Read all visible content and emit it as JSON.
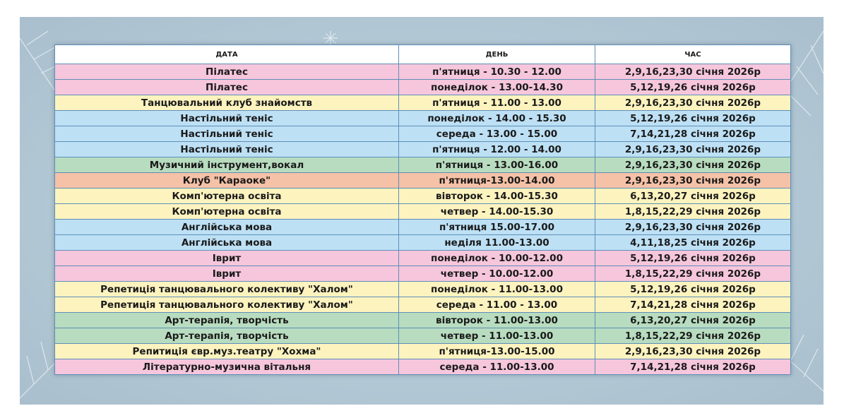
{
  "colors": {
    "pink": "#f6c6dc",
    "yellow": "#fdf3bf",
    "blue": "#bde0f5",
    "green": "#b8dcbf",
    "orange": "#f5c1a7"
  },
  "headers": [
    "ДАТА",
    "ДЕНЬ",
    "ЧАС"
  ],
  "rows": [
    {
      "activity": "Пілатес",
      "day": "п'ятниця - 10.30 - 12.00",
      "dates": "2,9,16,23,30 січня 2026р",
      "color": "pink"
    },
    {
      "activity": "Пілатес",
      "day": "понеділок - 13.00-14.30",
      "dates": "5,12,19,26 січня 2026р",
      "color": "pink"
    },
    {
      "activity": "Танцювальний клуб знайомств",
      "day": "п'ятниця - 11.00 - 13.00",
      "dates": "2,9,16,23,30 січня 2026р",
      "color": "yellow"
    },
    {
      "activity": "Настільний теніс",
      "day": "понеділок - 14.00 - 15.30",
      "dates": "5,12,19,26 січня 2026р",
      "color": "blue"
    },
    {
      "activity": "Настільний теніс",
      "day": "середа - 13.00 - 15.00",
      "dates": "7,14,21,28  січня 2026р",
      "color": "blue"
    },
    {
      "activity": "Настільний теніс",
      "day": "п'ятниця - 12.00 - 14.00",
      "dates": "2,9,16,23,30 січня 2026р",
      "color": "blue"
    },
    {
      "activity": "Музичний інструмент,вокал",
      "day": "п'ятниця - 13.00-16.00",
      "dates": "2,9,16,23,30 січня 2026р",
      "color": "green"
    },
    {
      "activity": "Клуб \"Караоке\"",
      "day": "п'ятниця-13.00-14.00",
      "dates": "2,9,16,23,30 січня 2026р",
      "color": "orange"
    },
    {
      "activity": "Комп'ютерна освіта",
      "day": "вівторок - 14.00-15.30",
      "dates": "6,13,20,27 січня 2026р",
      "color": "yellow"
    },
    {
      "activity": "Комп'ютерна освіта",
      "day": "четвер - 14.00-15.30",
      "dates": "1,8,15,22,29 січня 2026р",
      "color": "yellow"
    },
    {
      "activity": "Англійська мова",
      "day": "п'ятниця 15.00-17.00",
      "dates": "2,9,16,23,30 січня 2026р",
      "color": "blue"
    },
    {
      "activity": "Англійська мова",
      "day": "неділя 11.00-13.00",
      "dates": "4,11,18,25 січня 2026р",
      "color": "blue"
    },
    {
      "activity": "Іврит",
      "day": "понеділок - 10.00-12.00",
      "dates": "5,12,19,26 січня 2026р",
      "color": "pink"
    },
    {
      "activity": "Іврит",
      "day": "четвер - 10.00-12.00",
      "dates": "1,8,15,22,29 січня 2026р",
      "color": "pink"
    },
    {
      "activity": "Репетиція танцювального колективу \"Халом\"",
      "day": "понеділок - 11.00-13.00",
      "dates": "5,12,19,26 січня 2026р",
      "color": "yellow"
    },
    {
      "activity": "Репетиція танцювального колективу \"Халом\"",
      "day": "середа - 11.00 - 13.00",
      "dates": "7,14,21,28 січня 2026р",
      "color": "yellow"
    },
    {
      "activity": "Арт-терапія, творчість",
      "day": "вівторок - 11.00-13.00",
      "dates": "6,13,20,27 січня 2026р",
      "color": "green"
    },
    {
      "activity": "Арт-терапія, творчість",
      "day": "четвер - 11.00-13.00",
      "dates": "1,8,15,22,29 січня 2026р",
      "color": "green"
    },
    {
      "activity": "Репитиція євр.муз.театру \"Хохма\"",
      "day": "п'ятниця-13.00-15.00",
      "dates": "2,9,16,23,30 січня 2026р",
      "color": "yellow"
    },
    {
      "activity": "Літературно-музична вітальня",
      "day": "середа - 11.00-13.00",
      "dates": "7,14,21,28 січня 2026р",
      "color": "pink"
    }
  ]
}
